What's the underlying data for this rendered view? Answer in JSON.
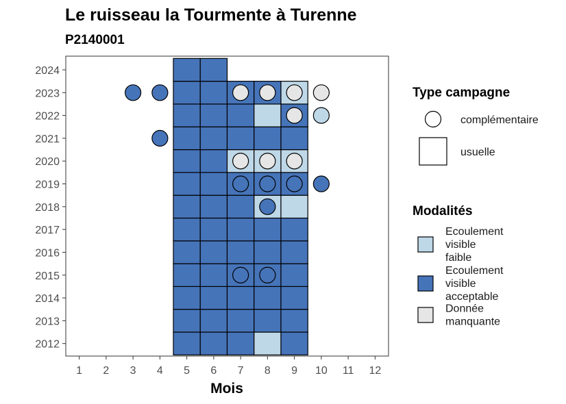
{
  "chart_data": {
    "type": "heatmap",
    "title": "Le ruisseau la Tourmente à Turenne",
    "subtitle": "P2140001",
    "xlabel": "Mois",
    "ylabel": "",
    "x_ticks": [
      "1",
      "2",
      "3",
      "4",
      "5",
      "6",
      "7",
      "8",
      "9",
      "10",
      "11",
      "12"
    ],
    "xlim": [
      0.5,
      12.5
    ],
    "y_ticks": [
      "2012",
      "2013",
      "2014",
      "2015",
      "2016",
      "2017",
      "2018",
      "2019",
      "2020",
      "2021",
      "2022",
      "2023",
      "2024"
    ],
    "ylim": [
      2011.45,
      2024.6
    ],
    "grid": false,
    "legend_shape": {
      "title": "Type campagne",
      "items": [
        {
          "label": "complémentaire",
          "shape": "circle"
        },
        {
          "label": "usuelle",
          "shape": "square"
        }
      ]
    },
    "legend_fill": {
      "title": "Modalités",
      "items": [
        {
          "key": "faible",
          "label_lines": [
            "Ecoulement",
            "visible",
            "faible"
          ],
          "color": "#bed8e8"
        },
        {
          "key": "acceptable",
          "label_lines": [
            "Ecoulement",
            "visible",
            "acceptable"
          ],
          "color": "#4674b9"
        },
        {
          "key": "manquante",
          "label_lines": [
            "Donnée",
            "manquante"
          ],
          "color": "#e6e6e6"
        }
      ]
    },
    "squares": [
      {
        "year": 2012,
        "months": [
          "acceptable",
          "acceptable",
          "acceptable",
          "faible",
          "acceptable"
        ]
      },
      {
        "year": 2013,
        "months": [
          "acceptable",
          "acceptable",
          "acceptable",
          "acceptable",
          "acceptable"
        ]
      },
      {
        "year": 2014,
        "months": [
          "acceptable",
          "acceptable",
          "acceptable",
          "acceptable",
          "acceptable"
        ]
      },
      {
        "year": 2015,
        "months": [
          "acceptable",
          "acceptable",
          "acceptable",
          "acceptable",
          "acceptable"
        ]
      },
      {
        "year": 2016,
        "months": [
          "acceptable",
          "acceptable",
          "acceptable",
          "acceptable",
          "acceptable"
        ]
      },
      {
        "year": 2017,
        "months": [
          "acceptable",
          "acceptable",
          "acceptable",
          "acceptable",
          "acceptable"
        ]
      },
      {
        "year": 2018,
        "months": [
          "acceptable",
          "acceptable",
          "acceptable",
          "faible",
          "faible"
        ]
      },
      {
        "year": 2019,
        "months": [
          "acceptable",
          "acceptable",
          "acceptable",
          "acceptable",
          "acceptable"
        ]
      },
      {
        "year": 2020,
        "months": [
          "acceptable",
          "acceptable",
          "faible",
          "faible",
          "faible"
        ]
      },
      {
        "year": 2021,
        "months": [
          "acceptable",
          "acceptable",
          "acceptable",
          "acceptable",
          "acceptable"
        ]
      },
      {
        "year": 2022,
        "months": [
          "acceptable",
          "acceptable",
          "acceptable",
          "faible",
          "acceptable"
        ]
      },
      {
        "year": 2023,
        "months": [
          "acceptable",
          "acceptable",
          "acceptable",
          "acceptable",
          "faible"
        ]
      },
      {
        "year": 2024,
        "months": [
          "acceptable",
          "acceptable"
        ]
      }
    ],
    "square_start_month": 5,
    "circles": [
      {
        "year": 2023,
        "month": 3,
        "value": "acceptable"
      },
      {
        "year": 2023,
        "month": 4,
        "value": "acceptable"
      },
      {
        "year": 2023,
        "month": 7,
        "value": "manquante"
      },
      {
        "year": 2023,
        "month": 8,
        "value": "manquante"
      },
      {
        "year": 2023,
        "month": 9,
        "value": "manquante"
      },
      {
        "year": 2023,
        "month": 10,
        "value": "manquante"
      },
      {
        "year": 2022,
        "month": 9,
        "value": "manquante"
      },
      {
        "year": 2022,
        "month": 10,
        "value": "faible"
      },
      {
        "year": 2021,
        "month": 4,
        "value": "acceptable"
      },
      {
        "year": 2020,
        "month": 7,
        "value": "manquante"
      },
      {
        "year": 2020,
        "month": 8,
        "value": "manquante"
      },
      {
        "year": 2020,
        "month": 9,
        "value": "manquante"
      },
      {
        "year": 2019,
        "month": 7,
        "value": "acceptable"
      },
      {
        "year": 2019,
        "month": 8,
        "value": "acceptable"
      },
      {
        "year": 2019,
        "month": 9,
        "value": "acceptable"
      },
      {
        "year": 2019,
        "month": 10,
        "value": "acceptable"
      },
      {
        "year": 2018,
        "month": 8,
        "value": "acceptable"
      },
      {
        "year": 2015,
        "month": 7,
        "value": "acceptable"
      },
      {
        "year": 2015,
        "month": 8,
        "value": "acceptable"
      }
    ]
  }
}
